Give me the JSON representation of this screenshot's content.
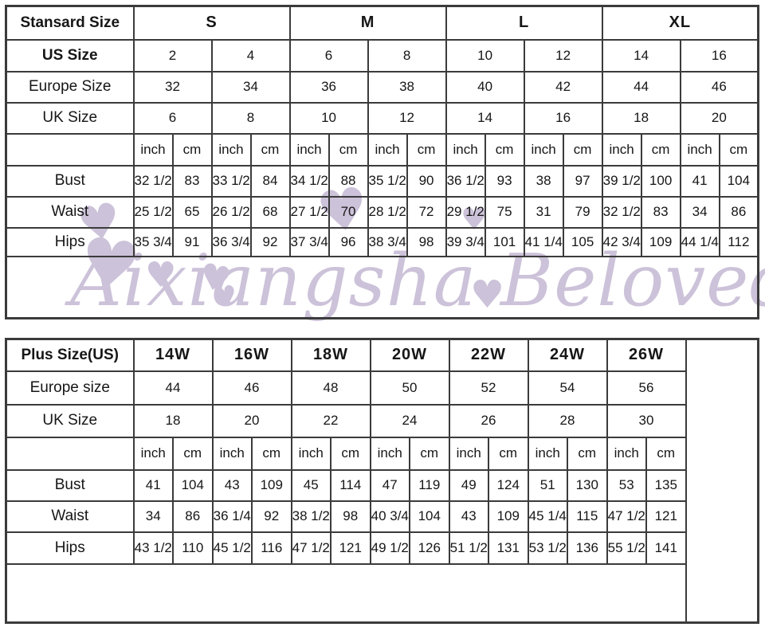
{
  "colors": {
    "border": "#3b3b3b",
    "text": "#161616",
    "watermark": "#ccc2d9",
    "background": "#ffffff"
  },
  "watermark": {
    "text": "Aixiangsha Beloved",
    "heart_icon": "♥"
  },
  "standard_table": {
    "header_label": "Stansard Size",
    "groups": [
      "S",
      "M",
      "L",
      "XL"
    ],
    "size_rows": [
      {
        "label": "US Size",
        "bold": true,
        "values": [
          "2",
          "4",
          "6",
          "8",
          "10",
          "12",
          "14",
          "16"
        ]
      },
      {
        "label": "Europe Size",
        "bold": false,
        "values": [
          "32",
          "34",
          "36",
          "38",
          "40",
          "42",
          "44",
          "46"
        ]
      },
      {
        "label": "UK Size",
        "bold": false,
        "values": [
          "6",
          "8",
          "10",
          "12",
          "14",
          "16",
          "18",
          "20"
        ]
      }
    ],
    "units": [
      "inch",
      "cm"
    ],
    "measure_rows": [
      {
        "label": "Bust",
        "values": [
          "32 1/2",
          "83",
          "33 1/2",
          "84",
          "34 1/2",
          "88",
          "35 1/2",
          "90",
          "36 1/2",
          "93",
          "38",
          "97",
          "39 1/2",
          "100",
          "41",
          "104"
        ]
      },
      {
        "label": "Waist",
        "values": [
          "25 1/2",
          "65",
          "26 1/2",
          "68",
          "27 1/2",
          "70",
          "28 1/2",
          "72",
          "29 1/2",
          "75",
          "31",
          "79",
          "32 1/2",
          "83",
          "34",
          "86"
        ]
      },
      {
        "label": "Hips",
        "values": [
          "35 3/4",
          "91",
          "36 3/4",
          "92",
          "37 3/4",
          "96",
          "38 3/4",
          "98",
          "39 3/4",
          "101",
          "41 1/4",
          "105",
          "42 3/4",
          "109",
          "44 1/4",
          "112"
        ]
      }
    ],
    "trailing_empty_col": false
  },
  "plus_table": {
    "header_label": "Plus Size(US)",
    "groups": [
      "14W",
      "16W",
      "18W",
      "20W",
      "22W",
      "24W",
      "26W"
    ],
    "size_rows": [
      {
        "label": "Europe size",
        "bold": false,
        "values": [
          "44",
          "46",
          "48",
          "50",
          "52",
          "54",
          "56"
        ]
      },
      {
        "label": "UK Size",
        "bold": false,
        "values": [
          "18",
          "20",
          "22",
          "24",
          "26",
          "28",
          "30"
        ]
      }
    ],
    "units": [
      "inch",
      "cm"
    ],
    "measure_rows": [
      {
        "label": "Bust",
        "values": [
          "41",
          "104",
          "43",
          "109",
          "45",
          "114",
          "47",
          "119",
          "49",
          "124",
          "51",
          "130",
          "53",
          "135"
        ]
      },
      {
        "label": "Waist",
        "values": [
          "34",
          "86",
          "36 1/4",
          "92",
          "38 1/2",
          "98",
          "40 3/4",
          "104",
          "43",
          "109",
          "45 1/4",
          "115",
          "47 1/2",
          "121"
        ]
      },
      {
        "label": "Hips",
        "values": [
          "43 1/2",
          "110",
          "45 1/2",
          "116",
          "47 1/2",
          "121",
          "49 1/2",
          "126",
          "51 1/2",
          "131",
          "53 1/2",
          "136",
          "55 1/2",
          "141"
        ]
      }
    ],
    "trailing_empty_col": true
  }
}
